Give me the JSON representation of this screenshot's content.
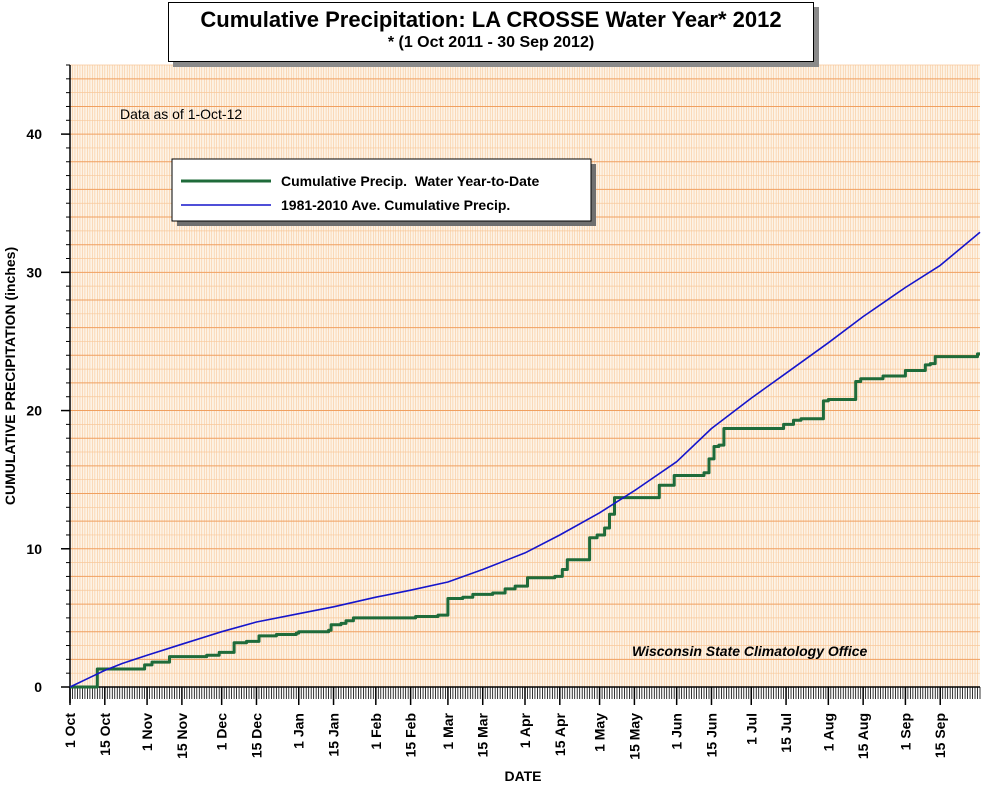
{
  "chart_data": {
    "type": "line",
    "title": "Cumulative Precipitation: LA CROSSE Water Year* 2012",
    "subtitle": "* (1 Oct 2011 - 30 Sep 2012)",
    "annotation": "Data as of 1-Oct-12",
    "credit": "Wisconsin State Climatology Office",
    "xlabel": "DATE",
    "ylabel": "CUMULATIVE PRECIPITATION (inches)",
    "ylim": [
      0,
      45
    ],
    "xlim": [
      "2011-10-01",
      "2012-10-01"
    ],
    "y_ticks": [
      0,
      10,
      20,
      30,
      40
    ],
    "x_ticks": [
      {
        "label": "1 Oct",
        "date": "2011-10-01"
      },
      {
        "label": "15 Oct",
        "date": "2011-10-15"
      },
      {
        "label": "1 Nov",
        "date": "2011-11-01"
      },
      {
        "label": "15 Nov",
        "date": "2011-11-15"
      },
      {
        "label": "1 Dec",
        "date": "2011-12-01"
      },
      {
        "label": "15 Dec",
        "date": "2011-12-15"
      },
      {
        "label": "1 Jan",
        "date": "2012-01-01"
      },
      {
        "label": "15 Jan",
        "date": "2012-01-15"
      },
      {
        "label": "1 Feb",
        "date": "2012-02-01"
      },
      {
        "label": "15 Feb",
        "date": "2012-02-15"
      },
      {
        "label": "1 Mar",
        "date": "2012-03-01"
      },
      {
        "label": "15 Mar",
        "date": "2012-03-15"
      },
      {
        "label": "1 Apr",
        "date": "2012-04-01"
      },
      {
        "label": "15 Apr",
        "date": "2012-04-15"
      },
      {
        "label": "1 May",
        "date": "2012-05-01"
      },
      {
        "label": "15 May",
        "date": "2012-05-15"
      },
      {
        "label": "1 Jun",
        "date": "2012-06-01"
      },
      {
        "label": "15 Jun",
        "date": "2012-06-15"
      },
      {
        "label": "1 Jul",
        "date": "2012-07-01"
      },
      {
        "label": "15 Jul",
        "date": "2012-07-15"
      },
      {
        "label": "1 Aug",
        "date": "2012-08-01"
      },
      {
        "label": "15 Aug",
        "date": "2012-08-15"
      },
      {
        "label": "1 Sep",
        "date": "2012-09-01"
      },
      {
        "label": "15 Sep",
        "date": "2012-09-15"
      }
    ],
    "grid": true,
    "legend_position": "top-left",
    "series": [
      {
        "name": "Cumulative Precip.  Water Year-to-Date",
        "color": "#1f6b3a",
        "step": true,
        "x": [
          "2011-10-01",
          "2011-10-12",
          "2011-10-31",
          "2011-11-03",
          "2011-11-10",
          "2011-11-25",
          "2011-11-30",
          "2011-12-06",
          "2011-12-11",
          "2011-12-16",
          "2011-12-23",
          "2011-12-26",
          "2011-12-31",
          "2012-01-01",
          "2012-01-13",
          "2012-01-14",
          "2012-01-18",
          "2012-01-20",
          "2012-01-23",
          "2012-02-02",
          "2012-02-12",
          "2012-02-17",
          "2012-02-26",
          "2012-03-01",
          "2012-03-07",
          "2012-03-11",
          "2012-03-19",
          "2012-03-24",
          "2012-03-28",
          "2012-04-02",
          "2012-04-13",
          "2012-04-16",
          "2012-04-18",
          "2012-04-27",
          "2012-04-30",
          "2012-05-03",
          "2012-05-05",
          "2012-05-07",
          "2012-05-23",
          "2012-05-25",
          "2012-05-31",
          "2012-06-12",
          "2012-06-14",
          "2012-06-16",
          "2012-06-18",
          "2012-06-20",
          "2012-07-11",
          "2012-07-14",
          "2012-07-18",
          "2012-07-21",
          "2012-07-30",
          "2012-08-01",
          "2012-08-12",
          "2012-08-14",
          "2012-08-23",
          "2012-09-01",
          "2012-09-03",
          "2012-09-09",
          "2012-09-11",
          "2012-09-13",
          "2012-09-30"
        ],
        "y": [
          0.0,
          1.3,
          1.6,
          1.8,
          2.2,
          2.3,
          2.5,
          3.2,
          3.3,
          3.7,
          3.8,
          3.8,
          3.9,
          4.0,
          4.1,
          4.5,
          4.6,
          4.8,
          5.0,
          5.0,
          5.0,
          5.1,
          5.2,
          6.4,
          6.5,
          6.7,
          6.8,
          7.1,
          7.3,
          7.9,
          8.0,
          8.5,
          9.2,
          10.8,
          11.0,
          11.5,
          12.5,
          13.7,
          13.7,
          14.6,
          15.3,
          15.5,
          16.5,
          17.4,
          17.5,
          18.7,
          18.7,
          19.0,
          19.3,
          19.4,
          20.7,
          20.8,
          22.1,
          22.3,
          22.5,
          22.9,
          22.9,
          23.3,
          23.4,
          23.9,
          24.1
        ]
      },
      {
        "name": "1981-2010 Ave. Cumulative Precip.",
        "color": "#1515cc",
        "step": false,
        "x": [
          "2011-10-01",
          "2011-10-08",
          "2011-10-15",
          "2011-10-22",
          "2011-11-01",
          "2011-11-15",
          "2011-12-01",
          "2011-12-15",
          "2012-01-01",
          "2012-01-15",
          "2012-02-01",
          "2012-02-15",
          "2012-03-01",
          "2012-03-15",
          "2012-04-01",
          "2012-04-15",
          "2012-05-01",
          "2012-05-15",
          "2012-06-01",
          "2012-06-15",
          "2012-07-01",
          "2012-07-15",
          "2012-08-01",
          "2012-08-15",
          "2012-09-01",
          "2012-09-15",
          "2012-10-01"
        ],
        "y": [
          0.0,
          0.6,
          1.2,
          1.7,
          2.3,
          3.1,
          4.0,
          4.7,
          5.3,
          5.8,
          6.5,
          7.0,
          7.6,
          8.5,
          9.7,
          11.0,
          12.6,
          14.2,
          16.3,
          18.7,
          20.9,
          22.7,
          24.9,
          26.8,
          28.9,
          30.5,
          32.9
        ]
      }
    ]
  }
}
